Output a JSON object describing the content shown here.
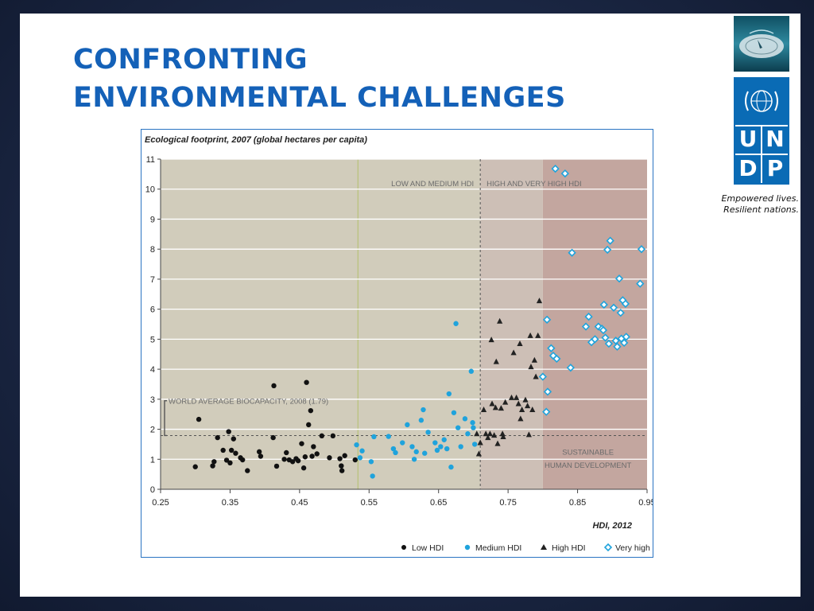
{
  "slide": {
    "title_line1": "CONFRONTING",
    "title_line2": "ENVIRONMENTAL CHALLENGES"
  },
  "logo": {
    "letters": [
      "U",
      "N",
      "D",
      "P"
    ],
    "tagline_line1": "Empowered lives.",
    "tagline_line2": "Resilient nations."
  },
  "colors": {
    "title": "#1461b8",
    "undp_blue": "#0a6bb5",
    "low_hdi": "#111111",
    "medium_hdi": "#1fa3dc",
    "high_hdi": "#222222",
    "very_high_hdi": "#1fa3dc",
    "zone_low": "#d1ccbb",
    "zone_mid_high": "#cdbfb6",
    "zone_very_high": "#c3a69f",
    "frame": "#2a74c2"
  },
  "chart_data": {
    "type": "scatter",
    "ylabel": "Ecological footprint, 2007 (global hectares per capita)",
    "xlabel": "HDI, 2012",
    "xlim": [
      0.25,
      0.95
    ],
    "ylim": [
      0,
      11
    ],
    "xticks": [
      "0.25",
      "0.35",
      "0.45",
      "0.55",
      "0.65",
      "0.75",
      "0.85",
      "0.95"
    ],
    "yticks": [
      "0",
      "1",
      "2",
      "3",
      "4",
      "5",
      "6",
      "7",
      "8",
      "9",
      "10",
      "11"
    ],
    "grid": "horizontal",
    "zones": [
      {
        "from": 0.25,
        "to": 0.534,
        "color": "#d1ccbb"
      },
      {
        "from": 0.534,
        "to": 0.71,
        "color": "#d1ccbb"
      },
      {
        "from": 0.71,
        "to": 0.8,
        "color": "#cdbfb6"
      },
      {
        "from": 0.8,
        "to": 0.95,
        "color": "#c3a69f"
      }
    ],
    "annotations": {
      "divider_label_left": "LOW AND MEDIUM HDI",
      "divider_label_right": "HIGH AND VERY HIGH HDI",
      "divider_x": 0.71,
      "biocapacity_label": "WORLD AVERAGE BIOCAPACITY, 2008 (1.79)",
      "biocapacity_value": 1.79,
      "sustainable_line1": "SUSTAINABLE",
      "sustainable_line2": "HUMAN DEVELOPMENT"
    },
    "legend_position": "bottom-right",
    "series": [
      {
        "name": "Low HDI",
        "marker": "circle",
        "points": [
          [
            0.3,
            0.75
          ],
          [
            0.305,
            2.33
          ],
          [
            0.325,
            0.78
          ],
          [
            0.327,
            0.92
          ],
          [
            0.332,
            1.72
          ],
          [
            0.34,
            1.3
          ],
          [
            0.345,
            0.97
          ],
          [
            0.348,
            1.92
          ],
          [
            0.35,
            0.88
          ],
          [
            0.352,
            1.3
          ],
          [
            0.355,
            1.68
          ],
          [
            0.358,
            1.2
          ],
          [
            0.365,
            1.05
          ],
          [
            0.368,
            0.98
          ],
          [
            0.375,
            0.62
          ],
          [
            0.392,
            1.25
          ],
          [
            0.394,
            1.1
          ],
          [
            0.412,
            1.72
          ],
          [
            0.413,
            3.45
          ],
          [
            0.417,
            0.77
          ],
          [
            0.428,
            1.0
          ],
          [
            0.431,
            1.22
          ],
          [
            0.435,
            0.98
          ],
          [
            0.44,
            0.92
          ],
          [
            0.445,
            1.02
          ],
          [
            0.448,
            0.95
          ],
          [
            0.453,
            1.52
          ],
          [
            0.456,
            0.71
          ],
          [
            0.458,
            1.08
          ],
          [
            0.46,
            3.56
          ],
          [
            0.463,
            2.15
          ],
          [
            0.466,
            2.62
          ],
          [
            0.468,
            1.1
          ],
          [
            0.47,
            1.42
          ],
          [
            0.475,
            1.18
          ],
          [
            0.482,
            1.78
          ],
          [
            0.493,
            1.05
          ],
          [
            0.498,
            1.78
          ],
          [
            0.508,
            1.02
          ],
          [
            0.51,
            0.78
          ],
          [
            0.515,
            1.12
          ],
          [
            0.53,
            0.98
          ],
          [
            0.511,
            0.62
          ]
        ]
      },
      {
        "name": "Medium HDI",
        "marker": "circle",
        "points": [
          [
            0.532,
            1.48
          ],
          [
            0.537,
            1.05
          ],
          [
            0.54,
            1.28
          ],
          [
            0.553,
            0.92
          ],
          [
            0.555,
            0.44
          ],
          [
            0.557,
            1.75
          ],
          [
            0.578,
            1.76
          ],
          [
            0.585,
            1.35
          ],
          [
            0.588,
            1.22
          ],
          [
            0.598,
            1.55
          ],
          [
            0.605,
            2.15
          ],
          [
            0.612,
            1.42
          ],
          [
            0.615,
            1.0
          ],
          [
            0.618,
            1.25
          ],
          [
            0.625,
            2.3
          ],
          [
            0.628,
            2.65
          ],
          [
            0.63,
            1.2
          ],
          [
            0.635,
            1.9
          ],
          [
            0.645,
            1.55
          ],
          [
            0.648,
            1.3
          ],
          [
            0.653,
            1.42
          ],
          [
            0.658,
            1.65
          ],
          [
            0.662,
            1.35
          ],
          [
            0.665,
            3.18
          ],
          [
            0.668,
            0.74
          ],
          [
            0.672,
            2.55
          ],
          [
            0.675,
            5.52
          ],
          [
            0.678,
            2.05
          ],
          [
            0.682,
            1.42
          ],
          [
            0.688,
            2.35
          ],
          [
            0.692,
            1.85
          ],
          [
            0.697,
            3.93
          ],
          [
            0.699,
            2.22
          ],
          [
            0.7,
            2.05
          ],
          [
            0.702,
            1.5
          ]
        ]
      },
      {
        "name": "High HDI",
        "marker": "triangle",
        "points": [
          [
            0.705,
            1.85
          ],
          [
            0.708,
            1.18
          ],
          [
            0.71,
            1.55
          ],
          [
            0.715,
            2.65
          ],
          [
            0.718,
            1.85
          ],
          [
            0.721,
            1.72
          ],
          [
            0.724,
            1.85
          ],
          [
            0.726,
            4.98
          ],
          [
            0.727,
            2.85
          ],
          [
            0.73,
            1.8
          ],
          [
            0.732,
            2.72
          ],
          [
            0.733,
            4.25
          ],
          [
            0.735,
            1.52
          ],
          [
            0.738,
            5.6
          ],
          [
            0.74,
            2.7
          ],
          [
            0.742,
            1.85
          ],
          [
            0.743,
            1.75
          ],
          [
            0.746,
            2.9
          ],
          [
            0.755,
            3.05
          ],
          [
            0.758,
            4.55
          ],
          [
            0.762,
            3.05
          ],
          [
            0.765,
            2.85
          ],
          [
            0.767,
            4.85
          ],
          [
            0.768,
            2.35
          ],
          [
            0.77,
            2.65
          ],
          [
            0.775,
            2.98
          ],
          [
            0.778,
            2.78
          ],
          [
            0.78,
            1.82
          ],
          [
            0.782,
            5.12
          ],
          [
            0.783,
            4.08
          ],
          [
            0.785,
            2.65
          ],
          [
            0.788,
            4.3
          ],
          [
            0.79,
            3.75
          ],
          [
            0.793,
            5.12
          ],
          [
            0.795,
            6.28
          ]
        ]
      },
      {
        "name": "Very high HDI",
        "marker": "diamond",
        "points": [
          [
            0.8,
            3.75
          ],
          [
            0.805,
            2.58
          ],
          [
            0.806,
            5.65
          ],
          [
            0.807,
            3.25
          ],
          [
            0.812,
            4.7
          ],
          [
            0.815,
            4.45
          ],
          [
            0.818,
            10.68
          ],
          [
            0.82,
            4.35
          ],
          [
            0.832,
            10.52
          ],
          [
            0.84,
            4.05
          ],
          [
            0.842,
            7.88
          ],
          [
            0.862,
            5.42
          ],
          [
            0.866,
            5.75
          ],
          [
            0.87,
            4.9
          ],
          [
            0.875,
            5.0
          ],
          [
            0.88,
            5.42
          ],
          [
            0.885,
            5.35
          ],
          [
            0.887,
            5.3
          ],
          [
            0.888,
            6.15
          ],
          [
            0.89,
            5.05
          ],
          [
            0.893,
            7.98
          ],
          [
            0.895,
            4.85
          ],
          [
            0.897,
            8.28
          ],
          [
            0.902,
            6.05
          ],
          [
            0.905,
            4.95
          ],
          [
            0.907,
            4.75
          ],
          [
            0.91,
            7.02
          ],
          [
            0.912,
            5.88
          ],
          [
            0.913,
            5.02
          ],
          [
            0.915,
            6.3
          ],
          [
            0.917,
            4.88
          ],
          [
            0.919,
            6.18
          ],
          [
            0.92,
            5.08
          ],
          [
            0.94,
            6.85
          ],
          [
            0.942,
            8.0
          ]
        ]
      }
    ]
  }
}
